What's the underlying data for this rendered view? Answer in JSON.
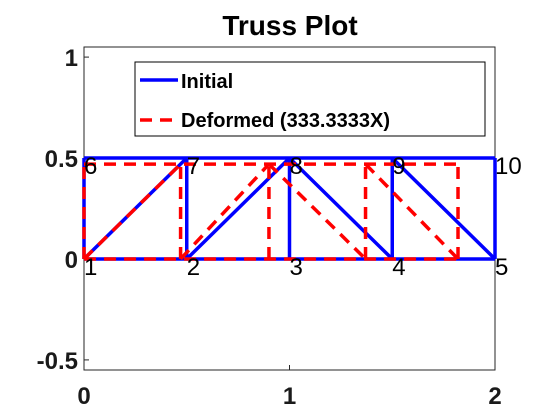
{
  "chart_data": {
    "type": "line",
    "title": "Truss Plot",
    "xlabel": "",
    "ylabel": "",
    "xlim": [
      0,
      2
    ],
    "ylim": [
      -0.55,
      1.05
    ],
    "x_ticks": [
      0,
      1,
      2
    ],
    "y_ticks": [
      -0.5,
      0,
      0.5,
      1
    ],
    "x_tick_labels": [
      "0",
      "1",
      "2"
    ],
    "y_tick_labels": [
      "-0.5",
      "0",
      "0.5",
      "1"
    ],
    "grid": false,
    "legend": {
      "placement": "top-center",
      "entries": [
        "Initial",
        "Deformed (333.3333X)"
      ]
    },
    "nodes": [
      {
        "id": "1",
        "x": 0,
        "y": 0
      },
      {
        "id": "2",
        "x": 0.5,
        "y": 0
      },
      {
        "id": "3",
        "x": 1,
        "y": 0
      },
      {
        "id": "4",
        "x": 1.5,
        "y": 0
      },
      {
        "id": "5",
        "x": 2,
        "y": 0
      },
      {
        "id": "6",
        "x": 0,
        "y": 0.5
      },
      {
        "id": "7",
        "x": 0.5,
        "y": 0.5
      },
      {
        "id": "8",
        "x": 1,
        "y": 0.5
      },
      {
        "id": "9",
        "x": 1.5,
        "y": 0.5
      },
      {
        "id": "10",
        "x": 2,
        "y": 0.5
      }
    ],
    "series": [
      {
        "name": "Initial",
        "color": "#0000ff",
        "style": "solid",
        "members": [
          [
            [
              0,
              0
            ],
            [
              2,
              0
            ]
          ],
          [
            [
              0,
              0.5
            ],
            [
              2,
              0.5
            ]
          ],
          [
            [
              0,
              0
            ],
            [
              0,
              0.5
            ]
          ],
          [
            [
              0.5,
              0
            ],
            [
              0.5,
              0.5
            ]
          ],
          [
            [
              1,
              0
            ],
            [
              1,
              0.5
            ]
          ],
          [
            [
              1.5,
              0
            ],
            [
              1.5,
              0.5
            ]
          ],
          [
            [
              2,
              0
            ],
            [
              2,
              0.5
            ]
          ],
          [
            [
              0,
              0
            ],
            [
              0.5,
              0.5
            ]
          ],
          [
            [
              0.5,
              0
            ],
            [
              1,
              0.5
            ]
          ],
          [
            [
              1,
              0.5
            ],
            [
              1.5,
              0
            ]
          ],
          [
            [
              1.5,
              0.5
            ],
            [
              2,
              0
            ]
          ]
        ]
      },
      {
        "name": "Deformed (333.3333X)",
        "color": "#ff0000",
        "style": "dashed",
        "members": [
          [
            [
              0,
              0
            ],
            [
              1.82,
              0
            ]
          ],
          [
            [
              0,
              0.47
            ],
            [
              1.82,
              0.47
            ]
          ],
          [
            [
              0,
              0
            ],
            [
              0,
              0.47
            ]
          ],
          [
            [
              0.47,
              0
            ],
            [
              0.47,
              0.47
            ]
          ],
          [
            [
              0.9,
              0
            ],
            [
              0.9,
              0.47
            ]
          ],
          [
            [
              1.37,
              0
            ],
            [
              1.37,
              0.47
            ]
          ],
          [
            [
              1.82,
              0
            ],
            [
              1.82,
              0.47
            ]
          ],
          [
            [
              0,
              0
            ],
            [
              0.47,
              0.47
            ]
          ],
          [
            [
              0.47,
              0
            ],
            [
              0.9,
              0.47
            ]
          ],
          [
            [
              0.9,
              0.47
            ],
            [
              1.37,
              0
            ]
          ],
          [
            [
              1.37,
              0.47
            ],
            [
              1.82,
              0
            ]
          ]
        ]
      }
    ]
  }
}
